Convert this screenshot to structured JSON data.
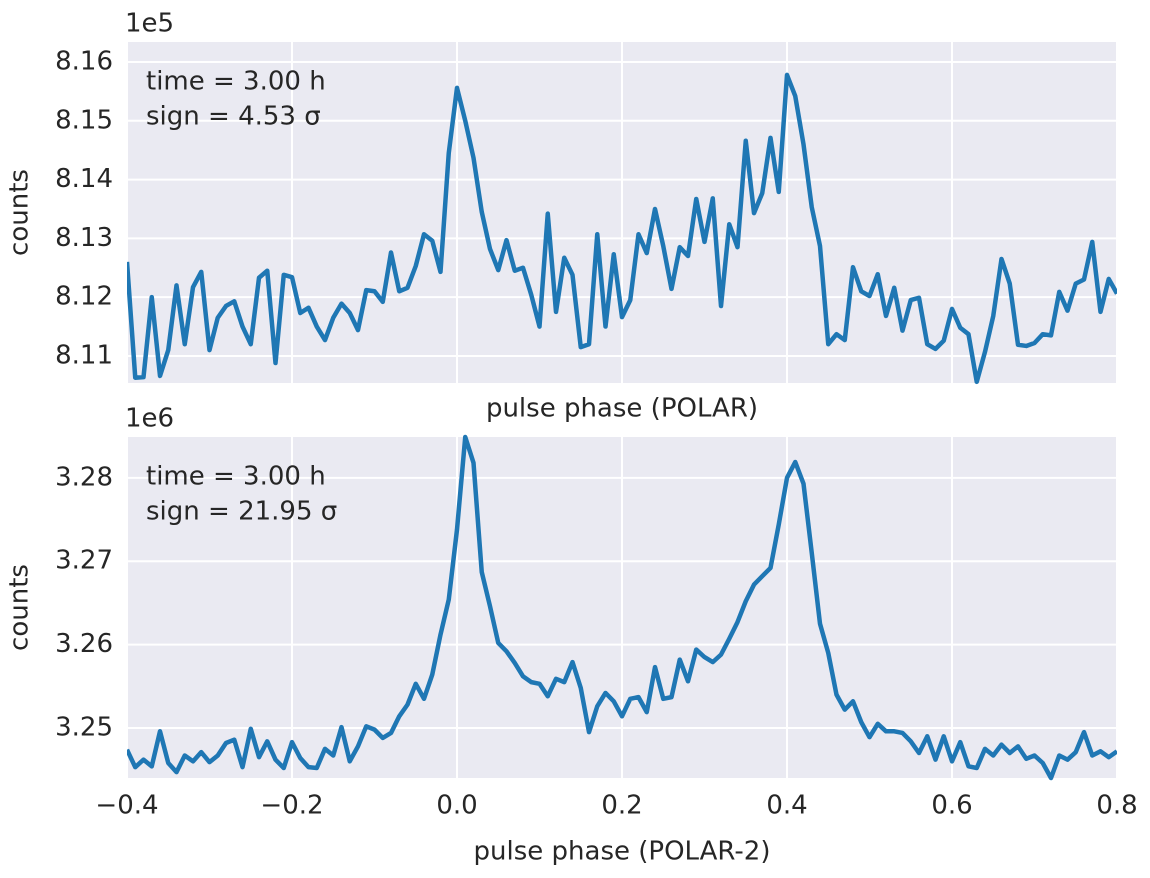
{
  "chart_data": [
    {
      "type": "line",
      "color": "#1f77b4",
      "xlabel": "pulse phase (POLAR)",
      "ylabel": "counts",
      "offset_text": "1e5",
      "annotations": [
        "time = 3.00 h",
        "sign = 4.53 σ"
      ],
      "grid": true,
      "xticklabels": false,
      "xlim": [
        -0.4,
        0.8
      ],
      "xticks": [
        -0.4,
        -0.2,
        0.0,
        0.2,
        0.4,
        0.6,
        0.8
      ],
      "ylim": [
        8.1054,
        8.1634
      ],
      "yticks": [
        8.11,
        8.12,
        8.13,
        8.14,
        8.15,
        8.16
      ],
      "x": [
        -0.4,
        -0.39,
        -0.38,
        -0.37,
        -0.36,
        -0.35,
        -0.34,
        -0.33,
        -0.32,
        -0.31,
        -0.3,
        -0.29,
        -0.28,
        -0.27,
        -0.26,
        -0.25,
        -0.24,
        -0.23,
        -0.22,
        -0.21,
        -0.2,
        -0.19,
        -0.18,
        -0.17,
        -0.16,
        -0.15,
        -0.14,
        -0.13,
        -0.12,
        -0.11,
        -0.1,
        -0.09,
        -0.08,
        -0.07,
        -0.06,
        -0.05,
        -0.04,
        -0.03,
        -0.02,
        -0.01,
        0.0,
        0.01,
        0.02,
        0.03,
        0.04,
        0.05,
        0.06,
        0.07,
        0.08,
        0.09,
        0.1,
        0.11,
        0.12,
        0.13,
        0.14,
        0.15,
        0.16,
        0.17,
        0.18,
        0.19,
        0.2,
        0.21,
        0.22,
        0.23,
        0.24,
        0.25,
        0.26,
        0.27,
        0.28,
        0.29,
        0.3,
        0.31,
        0.32,
        0.33,
        0.34,
        0.35,
        0.36,
        0.37,
        0.38,
        0.39,
        0.4,
        0.41,
        0.42,
        0.43,
        0.44,
        0.45,
        0.46,
        0.47,
        0.48,
        0.49,
        0.5,
        0.51,
        0.52,
        0.53,
        0.54,
        0.55,
        0.56,
        0.57,
        0.58,
        0.59,
        0.6,
        0.61,
        0.62,
        0.63,
        0.64,
        0.65,
        0.66,
        0.67,
        0.68,
        0.69,
        0.7,
        0.71,
        0.72,
        0.73,
        0.74,
        0.75,
        0.76,
        0.77,
        0.78,
        0.79,
        0.8
      ],
      "values": [
        8.126,
        8.1063,
        8.1064,
        8.12,
        8.1066,
        8.111,
        8.122,
        8.112,
        8.1217,
        8.1243,
        8.111,
        8.1165,
        8.1185,
        8.1193,
        8.115,
        8.112,
        8.1233,
        8.1245,
        8.1088,
        8.1238,
        8.1234,
        8.1173,
        8.1182,
        8.115,
        8.1127,
        8.1165,
        8.1189,
        8.1173,
        8.1144,
        8.1212,
        8.121,
        8.1192,
        8.1276,
        8.121,
        8.1216,
        8.1253,
        8.1307,
        8.1296,
        8.1243,
        8.1445,
        8.1556,
        8.15,
        8.1437,
        8.1345,
        8.1282,
        8.1246,
        8.1297,
        8.1245,
        8.125,
        8.1204,
        8.115,
        8.1342,
        8.1175,
        8.1267,
        8.1238,
        8.1115,
        8.112,
        8.1307,
        8.115,
        8.1273,
        8.1166,
        8.1195,
        8.1307,
        8.1275,
        8.135,
        8.1287,
        8.1214,
        8.1285,
        8.127,
        8.1367,
        8.1294,
        8.1368,
        8.1185,
        8.1324,
        8.1285,
        8.1466,
        8.1343,
        8.1377,
        8.1471,
        8.1379,
        8.1578,
        8.1542,
        8.146,
        8.1353,
        8.1287,
        8.112,
        8.1137,
        8.1127,
        8.1251,
        8.121,
        8.1202,
        8.1239,
        8.1168,
        8.1216,
        8.1143,
        8.1195,
        8.1199,
        8.112,
        8.1112,
        8.1126,
        8.118,
        8.1148,
        8.1137,
        8.1056,
        8.1107,
        8.1168,
        8.1265,
        8.1223,
        8.1119,
        8.1117,
        8.1122,
        8.1137,
        8.1135,
        8.1209,
        8.1177,
        8.1223,
        8.123,
        8.1294,
        8.1175,
        8.1231,
        8.1206
      ]
    },
    {
      "type": "line",
      "color": "#1f77b4",
      "xlabel": "pulse phase (POLAR-2)",
      "ylabel": "counts",
      "offset_text": "1e6",
      "annotations": [
        "time = 3.00 h",
        "sign = 21.95 σ"
      ],
      "grid": true,
      "xticklabels": true,
      "xlim": [
        -0.4,
        0.8
      ],
      "xticks": [
        {
          "value": -0.4,
          "label": "−0.4"
        },
        {
          "value": -0.2,
          "label": "−0.2"
        },
        {
          "value": 0.0,
          "label": "0.0"
        },
        0.2,
        0.4,
        0.6,
        0.8
      ],
      "ylim": [
        3.244,
        3.2849
      ],
      "yticks": [
        3.25,
        3.26,
        3.27,
        3.28
      ],
      "x": [
        -0.4,
        -0.39,
        -0.38,
        -0.37,
        -0.36,
        -0.35,
        -0.34,
        -0.33,
        -0.32,
        -0.31,
        -0.3,
        -0.29,
        -0.28,
        -0.27,
        -0.26,
        -0.25,
        -0.24,
        -0.23,
        -0.22,
        -0.21,
        -0.2,
        -0.19,
        -0.18,
        -0.17,
        -0.16,
        -0.15,
        -0.14,
        -0.13,
        -0.12,
        -0.11,
        -0.1,
        -0.09,
        -0.08,
        -0.07,
        -0.06,
        -0.05,
        -0.04,
        -0.03,
        -0.02,
        -0.01,
        0.0,
        0.01,
        0.02,
        0.03,
        0.04,
        0.05,
        0.06,
        0.07,
        0.08,
        0.09,
        0.1,
        0.11,
        0.12,
        0.13,
        0.14,
        0.15,
        0.16,
        0.17,
        0.18,
        0.19,
        0.2,
        0.21,
        0.22,
        0.23,
        0.24,
        0.25,
        0.26,
        0.27,
        0.28,
        0.29,
        0.3,
        0.31,
        0.32,
        0.33,
        0.34,
        0.35,
        0.36,
        0.37,
        0.38,
        0.39,
        0.4,
        0.41,
        0.42,
        0.43,
        0.44,
        0.45,
        0.46,
        0.47,
        0.48,
        0.49,
        0.5,
        0.51,
        0.52,
        0.53,
        0.54,
        0.55,
        0.56,
        0.57,
        0.58,
        0.59,
        0.6,
        0.61,
        0.62,
        0.63,
        0.64,
        0.65,
        0.66,
        0.67,
        0.68,
        0.69,
        0.7,
        0.71,
        0.72,
        0.73,
        0.74,
        0.75,
        0.76,
        0.77,
        0.78,
        0.79,
        0.8
      ],
      "values": [
        3.2474,
        3.2453,
        3.2462,
        3.2454,
        3.2496,
        3.2458,
        3.2447,
        3.2467,
        3.246,
        3.2471,
        3.2459,
        3.2467,
        3.2482,
        3.2486,
        3.2453,
        3.2499,
        3.2465,
        3.2484,
        3.2462,
        3.2452,
        3.2483,
        3.2464,
        3.2453,
        3.2452,
        3.2475,
        3.2467,
        3.2501,
        3.246,
        3.2478,
        3.2502,
        3.2498,
        3.2488,
        3.2494,
        3.2514,
        3.2528,
        3.2553,
        3.2535,
        3.2564,
        3.2612,
        3.2654,
        3.2738,
        3.2849,
        3.2818,
        3.2687,
        3.2646,
        3.2602,
        3.2592,
        3.2578,
        3.2562,
        3.2555,
        3.2553,
        3.2538,
        3.2559,
        3.2555,
        3.2579,
        3.2548,
        3.2495,
        3.2526,
        3.2542,
        3.2532,
        3.2514,
        3.2535,
        3.2537,
        3.2519,
        3.2573,
        3.2535,
        3.2537,
        3.2582,
        3.2556,
        3.2594,
        3.2585,
        3.2579,
        3.2588,
        3.2607,
        3.2627,
        3.2652,
        3.2672,
        3.2682,
        3.2692,
        3.2744,
        3.28,
        3.2819,
        3.2793,
        3.271,
        3.2625,
        3.259,
        3.254,
        3.2522,
        3.2532,
        3.2507,
        3.2489,
        3.2505,
        3.2496,
        3.2496,
        3.2494,
        3.2484,
        3.247,
        3.249,
        3.2462,
        3.249,
        3.246,
        3.2483,
        3.2454,
        3.2452,
        3.2475,
        3.2467,
        3.248,
        3.247,
        3.2478,
        3.2463,
        3.2467,
        3.2458,
        3.244,
        3.2467,
        3.2462,
        3.2471,
        3.2495,
        3.2467,
        3.2472,
        3.2465,
        3.2472
      ]
    }
  ]
}
